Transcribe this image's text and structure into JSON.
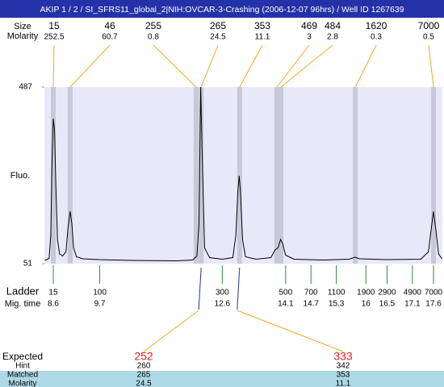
{
  "chart_data": {
    "type": "line",
    "title": "AKIP 1 / 2 / SI_SFRS11_global_2|NIH:OVCAR-3-Crashing (2006-12-07 96hrs) / Well ID 1267639",
    "y_label": "Fluo.",
    "ylim": [
      51,
      487
    ],
    "yticks": [
      51,
      487
    ],
    "xlim": [
      8.39,
      17.81
    ],
    "color": "#000000",
    "x": [
      8.4,
      8.5,
      8.54,
      8.57,
      8.6,
      8.63,
      8.66,
      8.7,
      8.75,
      8.82,
      8.9,
      8.95,
      9.0,
      9.04,
      9.08,
      9.15,
      9.3,
      9.7,
      10.5,
      11.5,
      11.9,
      12.0,
      12.05,
      12.09,
      12.13,
      12.18,
      12.3,
      12.6,
      12.85,
      12.92,
      12.97,
      13.0,
      13.03,
      13.08,
      13.15,
      13.4,
      13.75,
      13.85,
      13.92,
      13.98,
      14.03,
      14.1,
      14.3,
      15.0,
      15.6,
      15.74,
      15.85,
      16.5,
      17.3,
      17.48,
      17.55,
      17.6,
      17.65,
      17.72,
      17.8
    ],
    "values": [
      59,
      64,
      120,
      300,
      409,
      380,
      250,
      110,
      75,
      70,
      80,
      140,
      180,
      150,
      90,
      68,
      63,
      61,
      59,
      58,
      60,
      70,
      150,
      487,
      300,
      90,
      66,
      62,
      66,
      120,
      230,
      268,
      230,
      110,
      68,
      62,
      66,
      85,
      90,
      111,
      100,
      72,
      62,
      60,
      62,
      67,
      63,
      61,
      62,
      80,
      140,
      180,
      140,
      75,
      63
    ],
    "peaks": {
      "size_label": "Size",
      "molarity_label": "Molarity",
      "sizes": [
        15,
        46,
        255,
        265,
        353,
        469,
        484,
        1620,
        7000
      ],
      "molarity": [
        252.5,
        60.7,
        0.8,
        24.5,
        11.1,
        3,
        2.8,
        0.3,
        0.5
      ],
      "times": [
        8.6,
        9.0,
        11.98,
        12.1,
        13.01,
        13.89,
        13.99,
        15.75,
        17.6
      ]
    },
    "ladder": {
      "label": "Ladder",
      "time_label": "Mig. time",
      "sizes": [
        15,
        100,
        300,
        500,
        700,
        1100,
        1900,
        2900,
        4900,
        7000
      ],
      "times": [
        8.6,
        9.7,
        12.6,
        14.1,
        14.7,
        15.3,
        16,
        16.5,
        17.1,
        17.6
      ]
    },
    "expected": {
      "label": "Expected",
      "hint_label": "Hint",
      "matched_label": "Matched",
      "molarity_label": "Molarity",
      "expected": [
        252,
        333
      ],
      "hint": [
        260,
        342
      ],
      "matched": [
        265,
        353
      ],
      "molarity": [
        24.5,
        11.1
      ]
    }
  }
}
